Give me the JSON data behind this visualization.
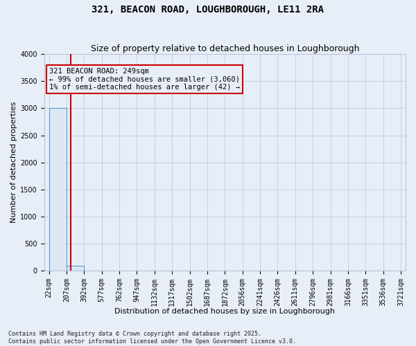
{
  "title1": "321, BEACON ROAD, LOUGHBOROUGH, LE11 2RA",
  "title2": "Size of property relative to detached houses in Loughborough",
  "xlabel": "Distribution of detached houses by size in Loughborough",
  "ylabel": "Number of detached properties",
  "bin_edges": [
    22,
    207,
    392,
    577,
    762,
    947,
    1132,
    1317,
    1502,
    1687,
    1872,
    2056,
    2241,
    2426,
    2611,
    2796,
    2981,
    3166,
    3351,
    3536,
    3721
  ],
  "bin_counts": [
    3000,
    100,
    10,
    5,
    3,
    2,
    1,
    1,
    1,
    1,
    1,
    0,
    0,
    0,
    0,
    0,
    0,
    0,
    0,
    0
  ],
  "bar_facecolor": "#dce9f5",
  "bar_edgecolor": "#5b9bd5",
  "property_size": 249,
  "vline_color": "#cc0000",
  "annotation_text": "321 BEACON ROAD: 249sqm\n← 99% of detached houses are smaller (3,060)\n1% of semi-detached houses are larger (42) →",
  "annotation_bbox_color": "#cc0000",
  "ylim": [
    0,
    4000
  ],
  "yticks": [
    0,
    500,
    1000,
    1500,
    2000,
    2500,
    3000,
    3500,
    4000
  ],
  "footnote": "Contains HM Land Registry data © Crown copyright and database right 2025.\nContains public sector information licensed under the Open Government Licence v3.0.",
  "background_color": "#e8eef8",
  "grid_color": "#b8c4d8",
  "title_fontsize": 10,
  "subtitle_fontsize": 9,
  "axis_label_fontsize": 8,
  "tick_fontsize": 7,
  "annotation_fontsize": 7.5
}
